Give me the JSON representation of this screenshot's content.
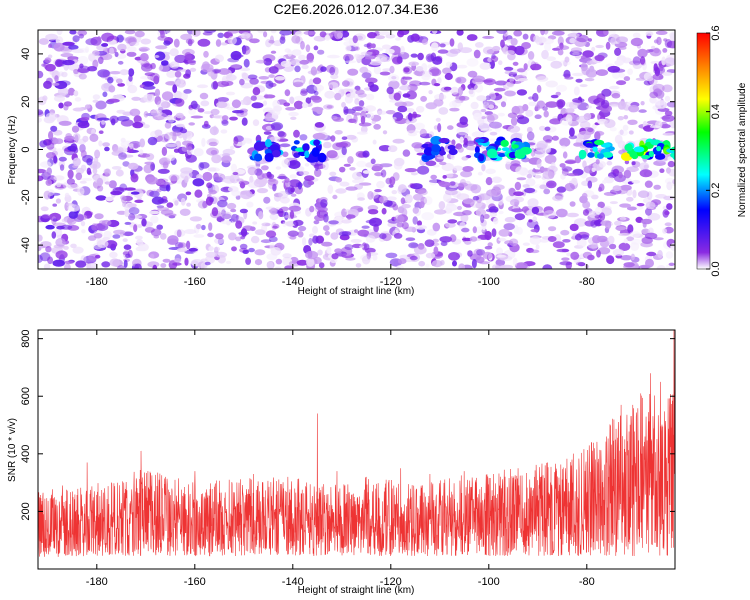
{
  "title": "C2E6.2026.012.07.34.E36",
  "chart_data": [
    {
      "type": "heatmap",
      "xlabel": "Height of straight line (km)",
      "ylabel": "Frequency (Hz)",
      "xlim": [
        -192,
        -62
      ],
      "ylim": [
        -50,
        50
      ],
      "xticks": [
        -180,
        -160,
        -140,
        -120,
        -100,
        -80
      ],
      "yticks": [
        -40,
        -20,
        0,
        20,
        40
      ],
      "colorbar": {
        "label": "Normalized spectral amplitude",
        "range": [
          0.0,
          0.6
        ],
        "ticks": [
          "0.0",
          "0.2",
          "0.4",
          "0.6"
        ],
        "colormap": [
          "#ffffff",
          "#8a2be2",
          "#0000ff",
          "#00ffff",
          "#00ff00",
          "#ffff00",
          "#ff8000",
          "#ff0000"
        ]
      },
      "signal_band": {
        "frequency_hz": 0,
        "amplitude_by_height": [
          [
            -145,
            0.22
          ],
          [
            -137,
            0.25
          ],
          [
            -110,
            0.18
          ],
          [
            -100,
            0.28
          ],
          [
            -95,
            0.3
          ],
          [
            -78,
            0.32
          ],
          [
            -70,
            0.4
          ],
          [
            -64,
            0.36
          ]
        ]
      }
    },
    {
      "type": "line",
      "xlabel": "Height of straight line (km)",
      "ylabel": "SNR (10 * v/v)",
      "xlim": [
        -192,
        -62
      ],
      "ylim": [
        0,
        830
      ],
      "xticks": [
        -180,
        -160,
        -140,
        -120,
        -100,
        -80
      ],
      "yticks": [
        200,
        400,
        600,
        800
      ],
      "color": "#ee3333",
      "envelope": [
        [
          -192,
          40,
          270
        ],
        [
          -180,
          45,
          300
        ],
        [
          -170,
          45,
          350
        ],
        [
          -160,
          45,
          300
        ],
        [
          -150,
          45,
          320
        ],
        [
          -140,
          45,
          320
        ],
        [
          -136,
          45,
          300
        ],
        [
          -125,
          45,
          320
        ],
        [
          -115,
          45,
          300
        ],
        [
          -105,
          45,
          330
        ],
        [
          -95,
          45,
          350
        ],
        [
          -85,
          45,
          380
        ],
        [
          -80,
          45,
          430
        ],
        [
          -75,
          45,
          520
        ],
        [
          -70,
          45,
          600
        ],
        [
          -65,
          45,
          620
        ],
        [
          -62,
          45,
          640
        ]
      ],
      "peaks": [
        [
          -191,
          250
        ],
        [
          -187,
          290
        ],
        [
          -182,
          370
        ],
        [
          -177,
          300
        ],
        [
          -171,
          410
        ],
        [
          -166,
          320
        ],
        [
          -160,
          340
        ],
        [
          -153,
          310
        ],
        [
          -148,
          330
        ],
        [
          -141,
          320
        ],
        [
          -135,
          540
        ],
        [
          -131,
          340
        ],
        [
          -125,
          320
        ],
        [
          -118,
          350
        ],
        [
          -112,
          330
        ],
        [
          -105,
          340
        ],
        [
          -99,
          330
        ],
        [
          -94,
          350
        ],
        [
          -88,
          370
        ],
        [
          -83,
          380
        ],
        [
          -79,
          440
        ],
        [
          -76,
          460
        ],
        [
          -73,
          570
        ],
        [
          -71,
          530
        ],
        [
          -69,
          610
        ],
        [
          -67,
          680
        ],
        [
          -65,
          650
        ],
        [
          -63,
          560
        ],
        [
          -62.2,
          830
        ]
      ]
    }
  ]
}
